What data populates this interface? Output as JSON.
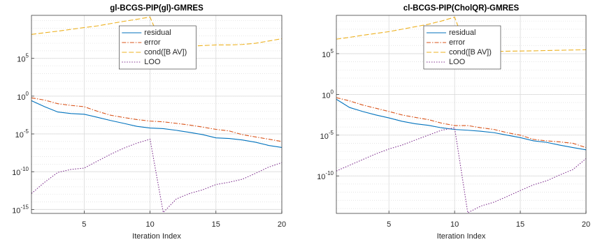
{
  "chart_data": [
    {
      "type": "line",
      "title": "gl-BCGS-PIP(gl)-GMRES",
      "xlabel": "Iteration Index",
      "x": [
        1,
        2,
        3,
        4,
        5,
        6,
        7,
        8,
        9,
        10,
        11,
        12,
        13,
        14,
        15,
        16,
        17,
        18,
        19,
        20
      ],
      "xlim": [
        1,
        20
      ],
      "xticks": [
        5,
        10,
        15,
        20
      ],
      "ylog": true,
      "ylim": [
        3e-16,
        50000000000.0
      ],
      "yticks": [
        {
          "value": 1e-15,
          "label": "10^-15"
        },
        {
          "value": 1e-10,
          "label": "10^-10"
        },
        {
          "value": 1e-05,
          "label": "10^-5"
        },
        {
          "value": 1,
          "label": "10^0"
        },
        {
          "value": 100000.0,
          "label": "10^5"
        }
      ],
      "grid": true,
      "minor_grid": true,
      "legend_loc": "north",
      "series": [
        {
          "name": "residual",
          "color": "#0072BD",
          "style": "solid",
          "values": [
            0.25,
            0.04,
            0.008,
            0.005,
            0.004,
            0.0016,
            0.0006,
            0.00025,
            0.0001,
            6e-05,
            5e-05,
            3e-05,
            1.6e-05,
            8e-06,
            3e-06,
            2.5e-06,
            1.6e-06,
            8e-07,
            3e-07,
            1.6e-07
          ]
        },
        {
          "name": "error",
          "color": "#D95319",
          "style": "dashdot",
          "values": [
            0.6,
            0.3,
            0.1,
            0.06,
            0.04,
            0.01,
            0.003,
            0.0015,
            0.0008,
            0.0005,
            0.0004,
            0.00025,
            0.00015,
            8e-05,
            4e-05,
            2.5e-05,
            8e-06,
            4e-06,
            2e-06,
            1e-06
          ]
        },
        {
          "name": "cond([B AV])",
          "color": "#EDB120",
          "style": "dashed",
          "values": [
            150000000.0,
            250000000.0,
            400000000.0,
            700000000.0,
            1200000000.0,
            2000000000.0,
            4000000000.0,
            8000000000.0,
            15000000000.0,
            30000000000.0,
            2000000.0,
            3000000.0,
            4000000.0,
            5000000.0,
            6000000.0,
            6000000.0,
            7000000.0,
            10000000.0,
            20000000.0,
            40000000.0
          ]
        },
        {
          "name": "LOO",
          "color": "#7E2F8E",
          "style": "dotted",
          "values": [
            1.3e-13,
            4e-12,
            8e-11,
            2e-10,
            3e-10,
            2.5e-09,
            2e-08,
            1.3e-07,
            6e-07,
            2e-06,
            4e-16,
            2.5e-14,
            1.3e-13,
            4e-13,
            2e-12,
            4e-12,
            1e-11,
            6e-11,
            4e-10,
            1.6e-09
          ]
        }
      ]
    },
    {
      "type": "line",
      "title": "cl-BCGS-PIP(CholQR)-GMRES",
      "xlabel": "Iteration Index",
      "x": [
        1,
        2,
        3,
        4,
        5,
        6,
        7,
        8,
        9,
        10,
        11,
        12,
        13,
        14,
        15,
        16,
        17,
        18,
        19,
        20
      ],
      "xlim": [
        1,
        20
      ],
      "xticks": [
        5,
        10,
        15,
        20
      ],
      "ylog": true,
      "ylim": [
        2.5e-15,
        5000000000.0
      ],
      "yticks": [
        {
          "value": 1e-10,
          "label": "10^-10"
        },
        {
          "value": 1e-05,
          "label": "10^-5"
        },
        {
          "value": 1,
          "label": "10^0"
        },
        {
          "value": 100000.0,
          "label": "10^5"
        }
      ],
      "grid": true,
      "minor_grid": true,
      "legend_loc": "north",
      "series": [
        {
          "name": "residual",
          "color": "#0072BD",
          "style": "solid",
          "values": [
            0.25,
            0.025,
            0.008,
            0.003,
            0.0013,
            0.0005,
            0.00025,
            0.00016,
            8e-05,
            5e-05,
            4e-05,
            3e-05,
            2e-05,
            1e-05,
            5e-06,
            2e-06,
            1.3e-06,
            6e-07,
            3e-07,
            1.6e-07
          ]
        },
        {
          "name": "error",
          "color": "#D95319",
          "style": "dashdot",
          "values": [
            0.4,
            0.16,
            0.05,
            0.02,
            0.008,
            0.003,
            0.0015,
            0.0008,
            0.0003,
            0.00015,
            0.00015,
            8e-05,
            5e-05,
            2e-05,
            1e-05,
            3e-06,
            2e-06,
            1.5e-06,
            1e-06,
            3e-07
          ]
        },
        {
          "name": "cond([B AV])",
          "color": "#EDB120",
          "style": "dashed",
          "values": [
            6000000.0,
            10000000.0,
            18000000.0,
            30000000.0,
            50000000.0,
            100000000.0,
            200000000.0,
            400000000.0,
            1000000000.0,
            3000000000.0,
            150000.0,
            170000.0,
            180000.0,
            200000.0,
            210000.0,
            220000.0,
            240000.0,
            260000.0,
            280000.0,
            300000.0
          ]
        },
        {
          "name": "LOO",
          "color": "#7E2F8E",
          "style": "dotted",
          "values": [
            4e-10,
            2e-09,
            1e-08,
            5e-08,
            2e-07,
            6e-07,
            2.5e-06,
            1e-05,
            4e-05,
            8e-05,
            3e-15,
            2e-14,
            6e-14,
            3e-13,
            1.6e-12,
            8e-12,
            2.5e-11,
            1.3e-10,
            6e-10,
            1.3e-08
          ]
        }
      ]
    }
  ]
}
